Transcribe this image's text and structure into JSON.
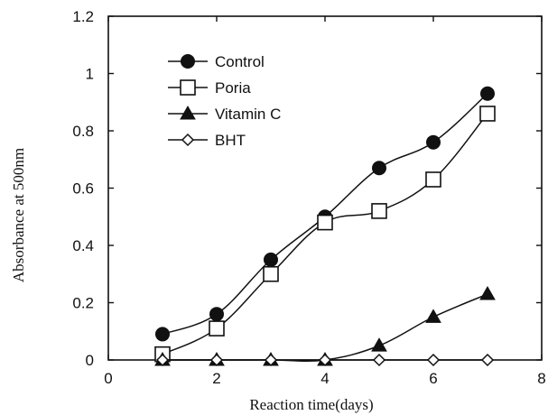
{
  "chart_data": {
    "type": "line",
    "title": "",
    "xlabel": "Reaction time(days)",
    "ylabel": "Absorbance at 500nm",
    "xlim": [
      0,
      8
    ],
    "ylim": [
      0,
      1.2
    ],
    "xticks": [
      0,
      2,
      4,
      6,
      8
    ],
    "yticks": [
      0,
      0.2,
      0.4,
      0.6,
      0.8,
      1,
      1.2
    ],
    "xtick_labels": [
      "0",
      "2",
      "4",
      "6",
      "8"
    ],
    "ytick_labels": [
      "0",
      "0.2",
      "0.4",
      "0.6",
      "0.8",
      "1",
      "1.2"
    ],
    "grid": false,
    "legend_position": "top-left",
    "series": [
      {
        "name": "Control",
        "marker": "filled-circle",
        "x": [
          1,
          2,
          3,
          4,
          5,
          6,
          7
        ],
        "y": [
          0.09,
          0.16,
          0.35,
          0.5,
          0.67,
          0.76,
          0.93
        ]
      },
      {
        "name": "Poria",
        "marker": "open-square",
        "x": [
          1,
          2,
          3,
          4,
          5,
          6,
          7
        ],
        "y": [
          0.02,
          0.11,
          0.3,
          0.48,
          0.52,
          0.63,
          0.86
        ]
      },
      {
        "name": "Vitamin C",
        "marker": "filled-triangle",
        "x": [
          1,
          2,
          3,
          4,
          5,
          6,
          7
        ],
        "y": [
          0.0,
          0.0,
          0.0,
          0.0,
          0.05,
          0.15,
          0.23
        ]
      },
      {
        "name": "BHT",
        "marker": "open-diamond",
        "x": [
          1,
          2,
          3,
          4,
          5,
          6,
          7
        ],
        "y": [
          0.0,
          0.0,
          0.0,
          0.0,
          0.0,
          0.0,
          0.0
        ]
      }
    ]
  }
}
